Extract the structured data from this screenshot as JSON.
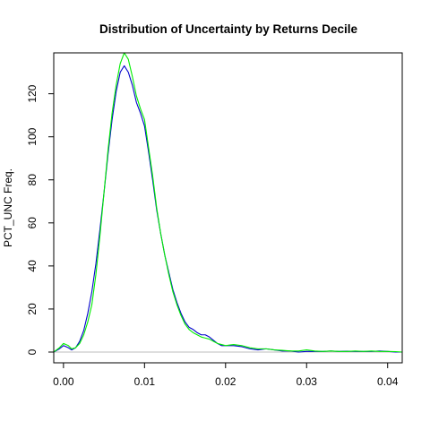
{
  "chart_data": {
    "type": "line",
    "title": "Distribution of Uncertainty by Returns Decile",
    "xlabel": "",
    "ylabel": "PCT_UNC Freq.",
    "xlim": [
      -0.0012,
      0.0418
    ],
    "ylim": [
      -5,
      139
    ],
    "x_ticks": [
      0.0,
      0.01,
      0.02,
      0.03,
      0.04
    ],
    "x_tick_labels": [
      "0.00",
      "0.01",
      "0.02",
      "0.03",
      "0.04"
    ],
    "y_ticks": [
      0,
      20,
      40,
      60,
      80,
      100,
      120
    ],
    "y_tick_labels": [
      "0",
      "20",
      "40",
      "60",
      "80",
      "100",
      "120"
    ],
    "baseline": 0,
    "baseline_color": "#bebebe",
    "grid": false,
    "series": [
      {
        "color": "#0000cc",
        "x": [
          -0.0012,
          -0.0005,
          0.0,
          0.0006,
          0.001,
          0.0015,
          0.002,
          0.0025,
          0.003,
          0.0035,
          0.004,
          0.0045,
          0.005,
          0.0055,
          0.006,
          0.0065,
          0.007,
          0.0075,
          0.008,
          0.0085,
          0.009,
          0.0095,
          0.01,
          0.0105,
          0.011,
          0.0115,
          0.012,
          0.0125,
          0.013,
          0.0135,
          0.014,
          0.0145,
          0.015,
          0.0155,
          0.016,
          0.0165,
          0.017,
          0.0175,
          0.018,
          0.0185,
          0.019,
          0.0195,
          0.02,
          0.021,
          0.022,
          0.023,
          0.024,
          0.025,
          0.026,
          0.027,
          0.028,
          0.029,
          0.03,
          0.031,
          0.032,
          0.033,
          0.034,
          0.035,
          0.036,
          0.037,
          0.038,
          0.039,
          0.04,
          0.041,
          0.0418
        ],
        "y": [
          0,
          1.5,
          3,
          2,
          1,
          2,
          5,
          10,
          18,
          28,
          41,
          57,
          74,
          92,
          108,
          121,
          130,
          133,
          130,
          124,
          116,
          111,
          105,
          93,
          80,
          66,
          55,
          45,
          37,
          29,
          23,
          18,
          14,
          11.5,
          10.5,
          9,
          8,
          8,
          7,
          5.5,
          4,
          3,
          3,
          3,
          2.5,
          1.5,
          1,
          1.5,
          1,
          0.5,
          0.5,
          0,
          0.3,
          0.3,
          0.3,
          0.5,
          0.3,
          0.4,
          0.3,
          0.3,
          0.3,
          0.5,
          0.3,
          0,
          0
        ]
      },
      {
        "color": "#00ee00",
        "x": [
          -0.0012,
          -0.0005,
          0.0,
          0.0006,
          0.001,
          0.0015,
          0.002,
          0.0025,
          0.003,
          0.0035,
          0.004,
          0.0045,
          0.005,
          0.0055,
          0.006,
          0.0065,
          0.007,
          0.0075,
          0.008,
          0.0085,
          0.009,
          0.0095,
          0.01,
          0.0105,
          0.011,
          0.0115,
          0.012,
          0.0125,
          0.013,
          0.0135,
          0.014,
          0.0145,
          0.015,
          0.0155,
          0.016,
          0.0165,
          0.017,
          0.0175,
          0.018,
          0.0185,
          0.019,
          0.0195,
          0.02,
          0.021,
          0.022,
          0.023,
          0.024,
          0.025,
          0.026,
          0.027,
          0.028,
          0.029,
          0.03,
          0.031,
          0.032,
          0.033,
          0.034,
          0.035,
          0.036,
          0.037,
          0.038,
          0.039,
          0.04,
          0.041,
          0.0418
        ],
        "y": [
          0,
          2,
          4,
          3,
          1.5,
          2,
          4,
          8,
          14,
          22,
          36,
          54,
          74,
          94,
          111,
          124,
          134,
          139,
          136,
          128,
          119,
          113,
          108,
          95,
          82,
          67,
          55,
          45,
          36,
          28,
          22,
          17,
          13,
          10.5,
          9,
          8,
          7,
          6.5,
          6,
          5,
          4,
          3.5,
          3,
          3.5,
          3,
          2,
          1.5,
          1.5,
          1,
          0.8,
          0.5,
          0.5,
          1,
          0.5,
          0.3,
          0.5,
          0.3,
          0.3,
          0.5,
          0.3,
          0.5,
          0.3,
          0.3,
          0.2,
          0
        ]
      }
    ]
  }
}
